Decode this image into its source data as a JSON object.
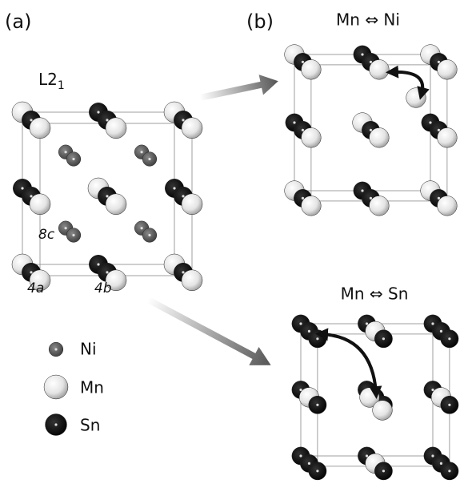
{
  "panels": [
    {
      "label": "(a)",
      "structure": {
        "base": "L2",
        "subscript": "1"
      },
      "sites": [
        "8c",
        "4a",
        "4b"
      ]
    },
    {
      "label": "(b)",
      "swap": "Mn ⇔ Ni"
    },
    {
      "swap": "Mn ⇔ Sn"
    }
  ],
  "legend": [
    "Ni",
    "Mn",
    "Sn"
  ]
}
